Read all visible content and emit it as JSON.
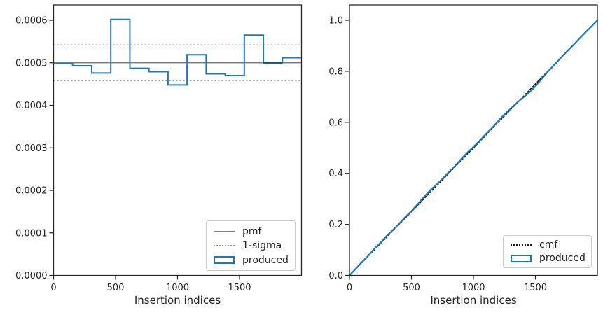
{
  "figure": {
    "background": "#ffffff",
    "spine_color": "#262626",
    "text_color": "#262626",
    "accent_blue": "#2077b4"
  },
  "chart_data": [
    {
      "type": "bar",
      "subtype": "step-histogram",
      "title": "",
      "xlabel": "Insertion indices",
      "ylabel": "",
      "xlim": [
        0,
        2000
      ],
      "ylim": [
        0,
        0.0006
      ],
      "grid": false,
      "x_ticks": [
        {
          "v": 0,
          "label": "0"
        },
        {
          "v": 500,
          "label": "500"
        },
        {
          "v": 1000,
          "label": "1000"
        },
        {
          "v": 1500,
          "label": "1500"
        }
      ],
      "y_ticks": [
        {
          "v": 0.0,
          "label": "0.0000"
        },
        {
          "v": 0.0001,
          "label": "0.0001"
        },
        {
          "v": 0.0002,
          "label": "0.0002"
        },
        {
          "v": 0.0003,
          "label": "0.0003"
        },
        {
          "v": 0.0004,
          "label": "0.0004"
        },
        {
          "v": 0.0005,
          "label": "0.0005"
        },
        {
          "v": 0.0006,
          "label": "0.0006"
        }
      ],
      "series": [
        {
          "name": "1-sigma",
          "type": "hline",
          "y": [
            0.000458,
            0.000542
          ],
          "color": "#9a9a9a",
          "style": "dotted",
          "width": 1.4
        },
        {
          "name": "pmf",
          "type": "hline",
          "y": [
            0.0005
          ],
          "color": "#7f7f7f",
          "style": "solid",
          "width": 1.6
        },
        {
          "name": "produced",
          "type": "step",
          "color": "#2077b4",
          "style": "solid",
          "width": 2,
          "bin_edges": [
            0,
            153.8,
            307.7,
            461.5,
            615.4,
            769.2,
            923.1,
            1076.9,
            1230.8,
            1384.6,
            1538.5,
            1692.3,
            1846.2,
            2000
          ],
          "values": [
            0.000498,
            0.000493,
            0.000476,
            0.000602,
            0.000487,
            0.000479,
            0.000448,
            0.000519,
            0.000474,
            0.00047,
            0.000565,
            0.0005,
            0.000512
          ],
          "overlap_bins": [
            11
          ],
          "overlap_color": "#17486b"
        }
      ],
      "legend": {
        "position": "lower right",
        "entries": [
          {
            "label": "pmf",
            "swatch": "line-solid",
            "color": "#7f7f7f"
          },
          {
            "label": "1-sigma",
            "swatch": "line-dotted",
            "color": "#9a9a9a"
          },
          {
            "label": "produced",
            "swatch": "rect",
            "color": "#2077b4"
          }
        ]
      }
    },
    {
      "type": "line",
      "subtype": "cumulative",
      "title": "",
      "xlabel": "Insertion indices",
      "ylabel": "",
      "xlim": [
        0,
        2000
      ],
      "ylim": [
        0,
        1.0
      ],
      "grid": false,
      "x_ticks": [
        {
          "v": 0,
          "label": "0"
        },
        {
          "v": 500,
          "label": "500"
        },
        {
          "v": 1000,
          "label": "1000"
        },
        {
          "v": 1500,
          "label": "1500"
        }
      ],
      "y_ticks": [
        {
          "v": 0.0,
          "label": "0.0"
        },
        {
          "v": 0.2,
          "label": "0.2"
        },
        {
          "v": 0.4,
          "label": "0.4"
        },
        {
          "v": 0.6,
          "label": "0.6"
        },
        {
          "v": 0.8,
          "label": "0.8"
        },
        {
          "v": 1.0,
          "label": "1.0"
        }
      ],
      "series": [
        {
          "name": "cmf",
          "type": "line",
          "color": "#1a1a1a",
          "style": "dotted",
          "width": 1.7,
          "x": [
            0,
            2000
          ],
          "y": [
            0,
            1
          ]
        },
        {
          "name": "produced",
          "type": "line",
          "color": "#2077b4",
          "style": "solid",
          "width": 2.2,
          "x": [
            0,
            50,
            100,
            150,
            200,
            250,
            300,
            350,
            400,
            450,
            500,
            550,
            600,
            650,
            700,
            750,
            800,
            850,
            900,
            950,
            1000,
            1050,
            1100,
            1150,
            1200,
            1250,
            1300,
            1350,
            1400,
            1450,
            1500,
            1550,
            1600,
            1650,
            1700,
            1750,
            1800,
            1850,
            1900,
            1950,
            2000
          ],
          "y": [
            0,
            0.026,
            0.052,
            0.076,
            0.104,
            0.128,
            0.155,
            0.178,
            0.202,
            0.229,
            0.252,
            0.279,
            0.307,
            0.333,
            0.355,
            0.379,
            0.404,
            0.428,
            0.455,
            0.481,
            0.504,
            0.528,
            0.554,
            0.578,
            0.605,
            0.631,
            0.653,
            0.676,
            0.697,
            0.717,
            0.741,
            0.77,
            0.798,
            0.824,
            0.85,
            0.876,
            0.9,
            0.926,
            0.951,
            0.975,
            1.0
          ]
        }
      ],
      "legend": {
        "position": "lower right",
        "entries": [
          {
            "label": "cmf",
            "swatch": "line-dotted",
            "color": "#1a1a1a"
          },
          {
            "label": "produced",
            "swatch": "rect",
            "color": "#2077b4"
          }
        ]
      }
    }
  ]
}
